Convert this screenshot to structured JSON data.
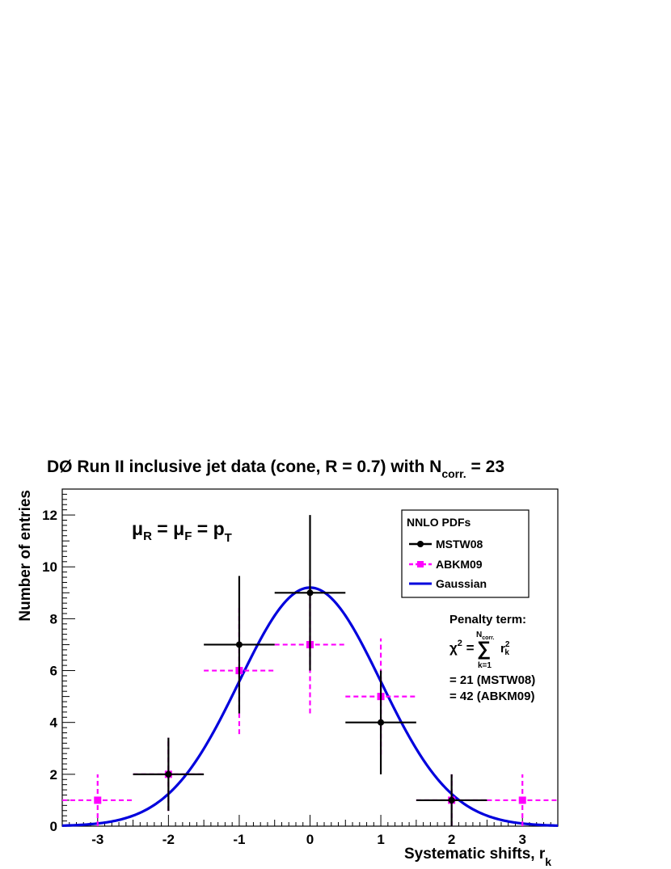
{
  "chart_data": {
    "type": "scatter",
    "title": {
      "main": "DØ Run II inclusive jet data (cone, R = 0.7) with N",
      "subscript": "corr.",
      "suffix": " = 23"
    },
    "xlabel": {
      "main": "Systematic shifts, r",
      "subscript": "k"
    },
    "ylabel": "Number of entries",
    "xlim": [
      -3.5,
      3.5
    ],
    "ylim": [
      0,
      13
    ],
    "x_ticks": [
      -3,
      -2,
      -1,
      0,
      1,
      2,
      3
    ],
    "y_ticks": [
      0,
      2,
      4,
      6,
      8,
      10,
      12
    ],
    "annotation_scale": {
      "mu": "μ",
      "sub_r": "R",
      "eq": " = ",
      "sub_f": "F",
      "p": "p",
      "sub_t": "T"
    },
    "legend": {
      "placement": "top-right",
      "title": "NNLO PDFs",
      "entries": [
        "MSTW08",
        "ABKM09",
        "Gaussian"
      ]
    },
    "penalty": {
      "title": "Penalty term:",
      "chi": "χ",
      "sup2": "2",
      "eq": " = ",
      "sigma": "∑",
      "upper": "N",
      "upper_sub": "corr.",
      "lower": "k=1",
      "r": "r",
      "r_sub": "k",
      "r_sup": "2",
      "line1": "= 21 (MSTW08)",
      "line2": "= 42 (ABKM09)"
    },
    "series": [
      {
        "name": "MSTW08",
        "color": "#000000",
        "marker": "circle",
        "line": "solid",
        "x": [
          -2,
          -1,
          0,
          1,
          2
        ],
        "y": [
          2,
          7,
          9,
          4,
          1
        ],
        "x_halfwidth": 0.5,
        "y_err": [
          1.41,
          2.65,
          3.0,
          2.0,
          1.0
        ]
      },
      {
        "name": "ABKM09",
        "color": "#ff00ff",
        "marker": "square",
        "line": "dashed",
        "x": [
          -3,
          -2,
          -1,
          0,
          1,
          2,
          3
        ],
        "y": [
          1,
          2,
          6,
          7,
          5,
          1,
          1
        ],
        "x_halfwidth": 0.5,
        "y_err": [
          1.0,
          1.41,
          2.45,
          2.65,
          2.24,
          1.0,
          1.0
        ]
      },
      {
        "name": "Gaussian",
        "color": "#0000dd",
        "line": "solid",
        "function": "gaussian",
        "amplitude": 9.2,
        "mean": 0,
        "sigma": 1
      }
    ]
  }
}
